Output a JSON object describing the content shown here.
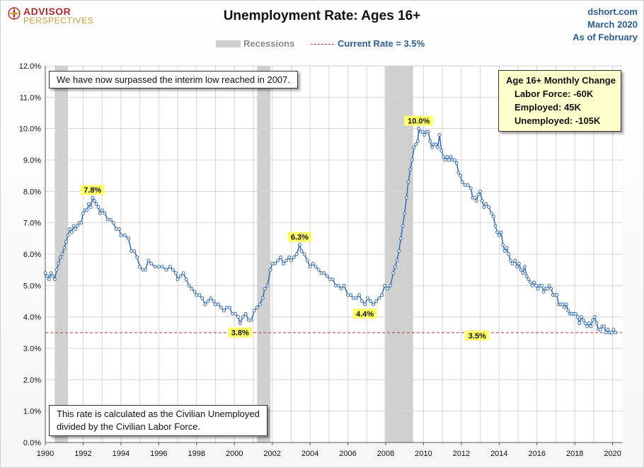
{
  "header": {
    "logo_line1": "ADVISOR",
    "logo_line2": "PERSPECTIVES",
    "title": "Unemployment Rate: Ages 16+",
    "source_site": "dshort.com",
    "source_date": "March 2020",
    "source_asof": "As of February"
  },
  "legend": {
    "recessions_label": "Recessions",
    "current_rate_label": "Current Rate = 3.5%"
  },
  "notes": {
    "top": "We have now surpassed the interim low reached in 2007.",
    "bottom_line1": "This rate is calculated as the Civilian Unemployed",
    "bottom_line2": "divided by the Civilian Labor Force."
  },
  "monthly_change": {
    "title": "Age 16+ Monthly Change",
    "labor_force": "Labor Force:  -60K",
    "employed": "Employed:  45K",
    "unemployed": "Unemployed:  -105K"
  },
  "colors": {
    "line": "#3a6fb5",
    "marker_fill": "#ffffff",
    "recession": "#d0d0d0",
    "current_rate_line": "#c0392b",
    "callout_fill": "#ffff66",
    "grid": "#d4d4d4"
  },
  "chart_data": {
    "type": "line",
    "title": "Unemployment Rate: Ages 16+",
    "x_unit": "year",
    "xlim": [
      1990,
      2020.5
    ],
    "ylim": [
      0,
      12
    ],
    "y_ticks": [
      0,
      1,
      2,
      3,
      4,
      5,
      6,
      7,
      8,
      9,
      10,
      11,
      12
    ],
    "y_tick_labels": [
      "0.0%",
      "1.0%",
      "2.0%",
      "3.0%",
      "4.0%",
      "5.0%",
      "6.0%",
      "7.0%",
      "8.0%",
      "9.0%",
      "10.0%",
      "11.0%",
      "12.0%"
    ],
    "x_ticks": [
      1990,
      1992,
      1994,
      1996,
      1998,
      2000,
      2002,
      2004,
      2006,
      2008,
      2010,
      2012,
      2014,
      2016,
      2018,
      2020
    ],
    "x_tick_labels": [
      "1990",
      "1992",
      "1994",
      "1996",
      "1998",
      "2000",
      "2002",
      "2004",
      "2006",
      "2008",
      "2010",
      "2012",
      "2014",
      "2016",
      "2018",
      "2020"
    ],
    "grid": true,
    "recessions": [
      {
        "start": 1990.5,
        "end": 1991.2
      },
      {
        "start": 2001.2,
        "end": 2001.9
      },
      {
        "start": 2007.95,
        "end": 2009.45
      }
    ],
    "reference_line": {
      "value": 3.5,
      "label": "Current Rate = 3.5%"
    },
    "annotations": [
      {
        "label": "7.8%",
        "x": 1992.5,
        "y": 7.8,
        "place": "above"
      },
      {
        "label": "3.8%",
        "x": 2000.3,
        "y": 3.8,
        "place": "below"
      },
      {
        "label": "6.3%",
        "x": 2003.45,
        "y": 6.3,
        "place": "above"
      },
      {
        "label": "4.4%",
        "x": 2006.9,
        "y": 4.4,
        "place": "below"
      },
      {
        "label": "10.0%",
        "x": 2009.75,
        "y": 10.0,
        "place": "above"
      },
      {
        "label": "3.5%",
        "x": 2020.1,
        "y": 3.5,
        "place": "left"
      }
    ],
    "series": [
      {
        "points": [
          [
            1990.0,
            5.4
          ],
          [
            1990.1,
            5.3
          ],
          [
            1990.2,
            5.2
          ],
          [
            1990.3,
            5.4
          ],
          [
            1990.4,
            5.3
          ],
          [
            1990.5,
            5.2
          ],
          [
            1990.6,
            5.5
          ],
          [
            1990.7,
            5.7
          ],
          [
            1990.8,
            5.9
          ],
          [
            1990.9,
            6.0
          ],
          [
            1991.0,
            6.2
          ],
          [
            1991.1,
            6.4
          ],
          [
            1991.2,
            6.6
          ],
          [
            1991.3,
            6.8
          ],
          [
            1991.4,
            6.7
          ],
          [
            1991.5,
            6.9
          ],
          [
            1991.6,
            6.8
          ],
          [
            1991.7,
            6.9
          ],
          [
            1991.8,
            7.0
          ],
          [
            1991.9,
            7.0
          ],
          [
            1992.0,
            7.3
          ],
          [
            1992.1,
            7.4
          ],
          [
            1992.2,
            7.4
          ],
          [
            1992.3,
            7.6
          ],
          [
            1992.4,
            7.5
          ],
          [
            1992.5,
            7.8
          ],
          [
            1992.6,
            7.7
          ],
          [
            1992.7,
            7.6
          ],
          [
            1992.8,
            7.5
          ],
          [
            1992.9,
            7.3
          ],
          [
            1993.0,
            7.4
          ],
          [
            1993.15,
            7.3
          ],
          [
            1993.3,
            7.1
          ],
          [
            1993.45,
            7.1
          ],
          [
            1993.6,
            7.0
          ],
          [
            1993.75,
            6.8
          ],
          [
            1993.9,
            6.8
          ],
          [
            1994.0,
            6.6
          ],
          [
            1994.2,
            6.6
          ],
          [
            1994.4,
            6.5
          ],
          [
            1994.55,
            6.1
          ],
          [
            1994.7,
            6.1
          ],
          [
            1994.85,
            5.9
          ],
          [
            1995.0,
            5.6
          ],
          [
            1995.15,
            5.5
          ],
          [
            1995.3,
            5.5
          ],
          [
            1995.45,
            5.8
          ],
          [
            1995.6,
            5.7
          ],
          [
            1995.8,
            5.6
          ],
          [
            1996.0,
            5.6
          ],
          [
            1996.2,
            5.6
          ],
          [
            1996.4,
            5.5
          ],
          [
            1996.6,
            5.6
          ],
          [
            1996.75,
            5.5
          ],
          [
            1996.9,
            5.4
          ],
          [
            1997.0,
            5.2
          ],
          [
            1997.15,
            5.3
          ],
          [
            1997.3,
            5.4
          ],
          [
            1997.45,
            5.2
          ],
          [
            1997.6,
            5.0
          ],
          [
            1997.75,
            4.9
          ],
          [
            1997.9,
            4.8
          ],
          [
            1998.0,
            4.7
          ],
          [
            1998.15,
            4.7
          ],
          [
            1998.3,
            4.6
          ],
          [
            1998.45,
            4.4
          ],
          [
            1998.6,
            4.5
          ],
          [
            1998.75,
            4.6
          ],
          [
            1998.9,
            4.5
          ],
          [
            1999.0,
            4.4
          ],
          [
            1999.15,
            4.4
          ],
          [
            1999.3,
            4.3
          ],
          [
            1999.45,
            4.2
          ],
          [
            1999.6,
            4.3
          ],
          [
            1999.75,
            4.3
          ],
          [
            1999.9,
            4.1
          ],
          [
            2000.05,
            4.1
          ],
          [
            2000.2,
            4.0
          ],
          [
            2000.3,
            3.8
          ],
          [
            2000.45,
            4.0
          ],
          [
            2000.6,
            4.1
          ],
          [
            2000.75,
            3.9
          ],
          [
            2000.9,
            3.9
          ],
          [
            2001.05,
            4.2
          ],
          [
            2001.2,
            4.3
          ],
          [
            2001.35,
            4.4
          ],
          [
            2001.5,
            4.6
          ],
          [
            2001.6,
            4.9
          ],
          [
            2001.75,
            5.0
          ],
          [
            2001.9,
            5.5
          ],
          [
            2002.0,
            5.7
          ],
          [
            2002.15,
            5.7
          ],
          [
            2002.3,
            5.8
          ],
          [
            2002.45,
            5.9
          ],
          [
            2002.6,
            5.7
          ],
          [
            2002.75,
            5.8
          ],
          [
            2002.9,
            5.9
          ],
          [
            2003.0,
            5.8
          ],
          [
            2003.15,
            5.9
          ],
          [
            2003.3,
            6.0
          ],
          [
            2003.45,
            6.3
          ],
          [
            2003.55,
            6.1
          ],
          [
            2003.7,
            6.0
          ],
          [
            2003.85,
            5.8
          ],
          [
            2004.0,
            5.6
          ],
          [
            2004.15,
            5.7
          ],
          [
            2004.3,
            5.6
          ],
          [
            2004.45,
            5.5
          ],
          [
            2004.6,
            5.4
          ],
          [
            2004.75,
            5.4
          ],
          [
            2004.9,
            5.3
          ],
          [
            2005.05,
            5.2
          ],
          [
            2005.2,
            5.2
          ],
          [
            2005.35,
            5.0
          ],
          [
            2005.5,
            5.0
          ],
          [
            2005.65,
            4.9
          ],
          [
            2005.8,
            5.0
          ],
          [
            2006.0,
            4.7
          ],
          [
            2006.15,
            4.7
          ],
          [
            2006.3,
            4.6
          ],
          [
            2006.45,
            4.6
          ],
          [
            2006.6,
            4.7
          ],
          [
            2006.75,
            4.5
          ],
          [
            2006.9,
            4.4
          ],
          [
            2007.05,
            4.6
          ],
          [
            2007.2,
            4.5
          ],
          [
            2007.35,
            4.4
          ],
          [
            2007.5,
            4.5
          ],
          [
            2007.65,
            4.6
          ],
          [
            2007.8,
            4.7
          ],
          [
            2007.95,
            5.0
          ],
          [
            2008.1,
            4.9
          ],
          [
            2008.25,
            5.0
          ],
          [
            2008.4,
            5.4
          ],
          [
            2008.5,
            5.6
          ],
          [
            2008.6,
            5.8
          ],
          [
            2008.7,
            6.1
          ],
          [
            2008.8,
            6.5
          ],
          [
            2008.9,
            6.9
          ],
          [
            2009.0,
            7.3
          ],
          [
            2009.1,
            7.8
          ],
          [
            2009.2,
            8.3
          ],
          [
            2009.3,
            8.7
          ],
          [
            2009.4,
            9.0
          ],
          [
            2009.5,
            9.4
          ],
          [
            2009.6,
            9.5
          ],
          [
            2009.7,
            9.6
          ],
          [
            2009.75,
            10.0
          ],
          [
            2009.85,
            9.9
          ],
          [
            2009.95,
            9.9
          ],
          [
            2010.05,
            9.8
          ],
          [
            2010.15,
            9.9
          ],
          [
            2010.25,
            9.9
          ],
          [
            2010.35,
            9.6
          ],
          [
            2010.45,
            9.4
          ],
          [
            2010.55,
            9.5
          ],
          [
            2010.65,
            9.5
          ],
          [
            2010.75,
            9.4
          ],
          [
            2010.85,
            9.8
          ],
          [
            2010.95,
            9.3
          ],
          [
            2011.05,
            9.1
          ],
          [
            2011.15,
            9.0
          ],
          [
            2011.25,
            9.1
          ],
          [
            2011.35,
            9.0
          ],
          [
            2011.45,
            9.1
          ],
          [
            2011.55,
            9.0
          ],
          [
            2011.65,
            9.0
          ],
          [
            2011.75,
            8.9
          ],
          [
            2011.85,
            8.6
          ],
          [
            2011.95,
            8.5
          ],
          [
            2012.05,
            8.3
          ],
          [
            2012.2,
            8.2
          ],
          [
            2012.35,
            8.2
          ],
          [
            2012.5,
            8.1
          ],
          [
            2012.6,
            7.8
          ],
          [
            2012.7,
            7.8
          ],
          [
            2012.8,
            7.7
          ],
          [
            2012.9,
            7.9
          ],
          [
            2013.0,
            8.0
          ],
          [
            2013.1,
            7.7
          ],
          [
            2013.2,
            7.5
          ],
          [
            2013.3,
            7.6
          ],
          [
            2013.45,
            7.5
          ],
          [
            2013.6,
            7.3
          ],
          [
            2013.7,
            7.2
          ],
          [
            2013.8,
            6.9
          ],
          [
            2013.9,
            6.7
          ],
          [
            2014.0,
            6.6
          ],
          [
            2014.1,
            6.7
          ],
          [
            2014.2,
            6.3
          ],
          [
            2014.3,
            6.1
          ],
          [
            2014.4,
            6.2
          ],
          [
            2014.5,
            6.0
          ],
          [
            2014.6,
            5.8
          ],
          [
            2014.7,
            5.7
          ],
          [
            2014.85,
            5.8
          ],
          [
            2014.95,
            5.6
          ],
          [
            2015.05,
            5.7
          ],
          [
            2015.15,
            5.5
          ],
          [
            2015.25,
            5.4
          ],
          [
            2015.35,
            5.6
          ],
          [
            2015.45,
            5.3
          ],
          [
            2015.55,
            5.2
          ],
          [
            2015.65,
            5.1
          ],
          [
            2015.75,
            5.0
          ],
          [
            2015.85,
            5.1
          ],
          [
            2015.95,
            5.0
          ],
          [
            2016.05,
            4.9
          ],
          [
            2016.15,
            5.0
          ],
          [
            2016.25,
            5.0
          ],
          [
            2016.35,
            4.8
          ],
          [
            2016.45,
            4.9
          ],
          [
            2016.55,
            4.9
          ],
          [
            2016.65,
            5.0
          ],
          [
            2016.75,
            4.9
          ],
          [
            2016.85,
            4.7
          ],
          [
            2016.95,
            4.7
          ],
          [
            2017.05,
            4.7
          ],
          [
            2017.15,
            4.4
          ],
          [
            2017.25,
            4.4
          ],
          [
            2017.35,
            4.4
          ],
          [
            2017.45,
            4.3
          ],
          [
            2017.55,
            4.4
          ],
          [
            2017.65,
            4.2
          ],
          [
            2017.75,
            4.1
          ],
          [
            2017.85,
            4.1
          ],
          [
            2017.95,
            4.1
          ],
          [
            2018.05,
            4.1
          ],
          [
            2018.15,
            4.0
          ],
          [
            2018.25,
            3.8
          ],
          [
            2018.35,
            4.0
          ],
          [
            2018.45,
            3.9
          ],
          [
            2018.55,
            3.8
          ],
          [
            2018.65,
            3.7
          ],
          [
            2018.75,
            3.8
          ],
          [
            2018.85,
            3.7
          ],
          [
            2018.95,
            3.9
          ],
          [
            2019.05,
            4.0
          ],
          [
            2019.15,
            3.8
          ],
          [
            2019.25,
            3.6
          ],
          [
            2019.35,
            3.6
          ],
          [
            2019.45,
            3.7
          ],
          [
            2019.55,
            3.7
          ],
          [
            2019.65,
            3.5
          ],
          [
            2019.75,
            3.6
          ],
          [
            2019.85,
            3.5
          ],
          [
            2019.95,
            3.5
          ],
          [
            2020.05,
            3.6
          ],
          [
            2020.15,
            3.5
          ]
        ]
      }
    ]
  }
}
